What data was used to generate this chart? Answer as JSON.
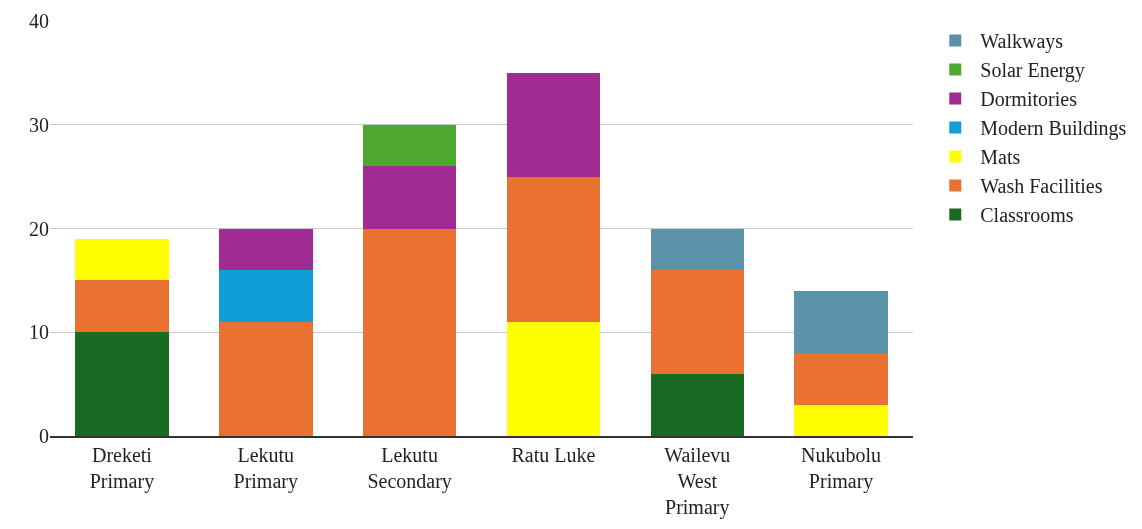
{
  "chart_data": {
    "type": "bar",
    "stacked": true,
    "categories": [
      "Dreketi\nPrimary",
      "Lekutu\nPrimary",
      "Lekutu\nSecondary",
      "Ratu Luke",
      "Wailevu\nWest\nPrimary",
      "Nukubolu\nPrimary"
    ],
    "series": [
      {
        "name": "Classrooms",
        "color": "#196b24",
        "values": [
          10,
          null,
          null,
          null,
          6,
          null
        ]
      },
      {
        "color": "#ffff00",
        "values": [
          null,
          null,
          null,
          11,
          null,
          3
        ]
      },
      {
        "name": "Wash Facilities",
        "color": "#e97132",
        "values": [
          5,
          11,
          20,
          14,
          10,
          5
        ]
      },
      {
        "name": "Mats",
        "color": "#ffff00",
        "values": [
          4,
          null,
          null,
          null,
          null,
          null
        ]
      },
      {
        "name": "Modern Buildings",
        "color": "#0f9ed5",
        "values": [
          null,
          5,
          null,
          null,
          null,
          null
        ]
      },
      {
        "name": "Dormitories",
        "color": "#a02b93",
        "values": [
          null,
          4,
          6,
          10,
          null,
          null
        ]
      },
      {
        "name": "Solar Energy",
        "color": "#4ea72e",
        "values": [
          null,
          null,
          4,
          null,
          null,
          null
        ]
      },
      {
        "name": "Walkways",
        "color": "#5b92a8",
        "values": [
          null,
          null,
          null,
          null,
          4,
          6
        ]
      }
    ],
    "ylim": [
      0,
      40
    ],
    "yticks": [
      0,
      10,
      20,
      30,
      40
    ],
    "grid": "y",
    "legend": "right"
  }
}
